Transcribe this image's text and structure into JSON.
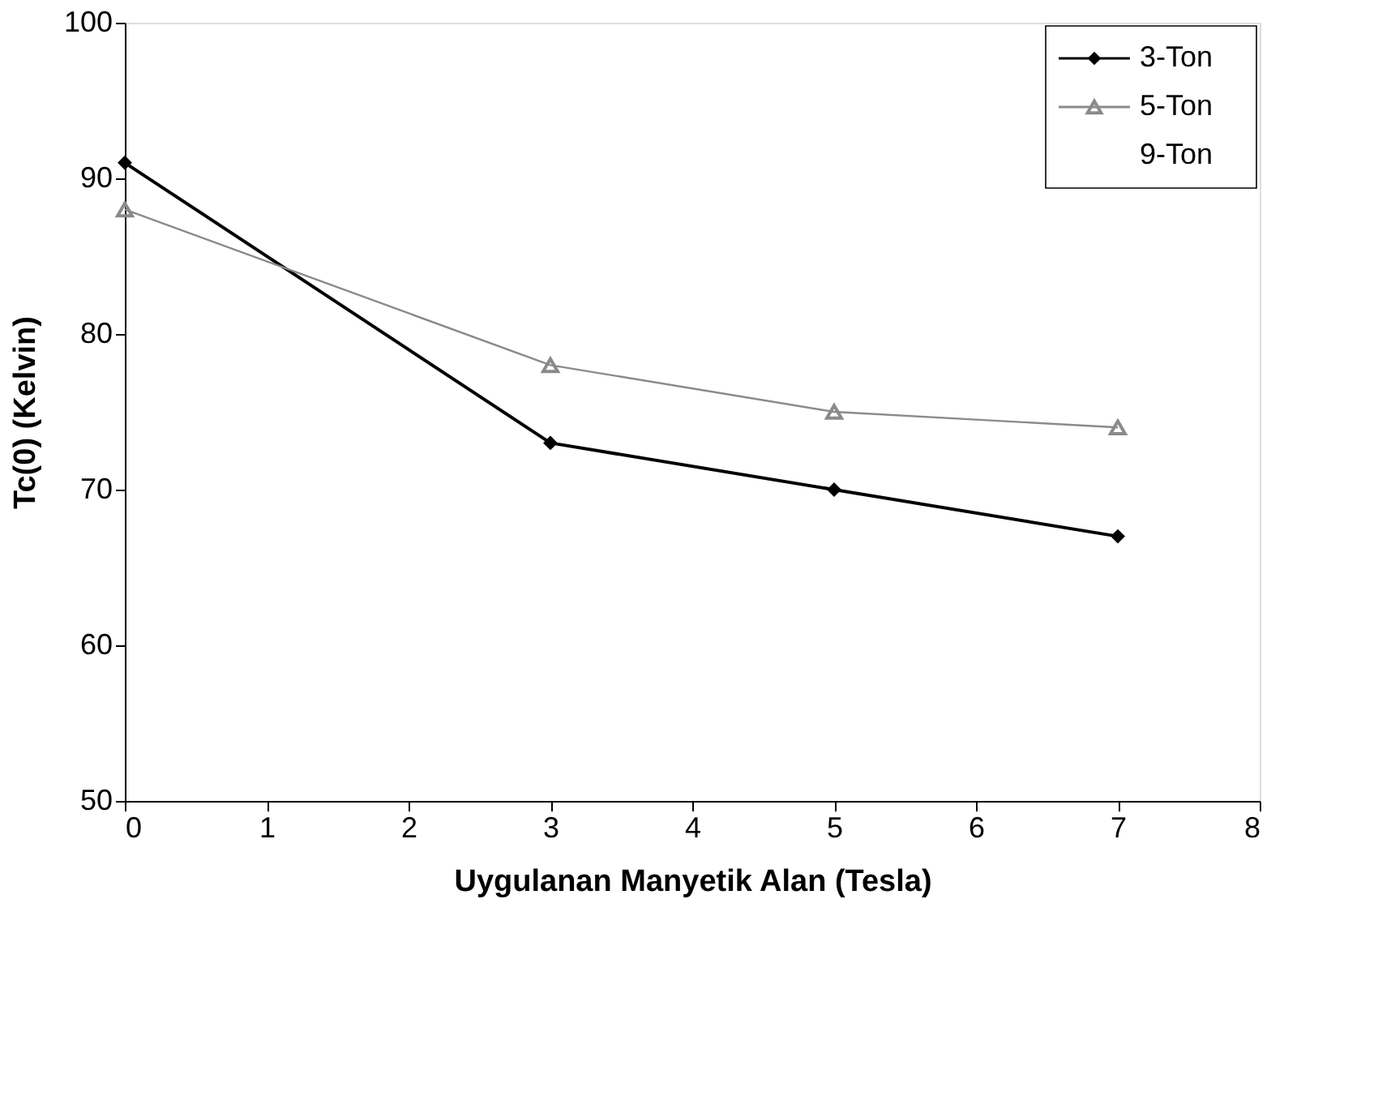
{
  "chart_data": {
    "type": "line",
    "xlabel": "Uygulanan Manyetik Alan (Tesla)",
    "ylabel": "Tc(0) (Kelvin)",
    "x": [
      0,
      3,
      5,
      7
    ],
    "series": [
      {
        "name": "3-Ton",
        "color": "#000000",
        "marker": "diamond",
        "values": [
          91,
          73,
          70,
          67
        ]
      },
      {
        "name": "5-Ton",
        "color": "#8a8a8a",
        "marker": "triangle",
        "values": [
          88,
          78,
          75,
          74
        ]
      },
      {
        "name": "9-Ton",
        "marker": "none",
        "values": [
          null,
          null,
          null,
          null
        ]
      }
    ],
    "xlim": [
      0,
      8
    ],
    "xticks": [
      0,
      1,
      2,
      3,
      4,
      5,
      6,
      7,
      8
    ],
    "ylim": [
      50,
      100
    ],
    "yticks": [
      50,
      60,
      70,
      80,
      90,
      100
    ],
    "grid": false,
    "legend": "top right"
  }
}
